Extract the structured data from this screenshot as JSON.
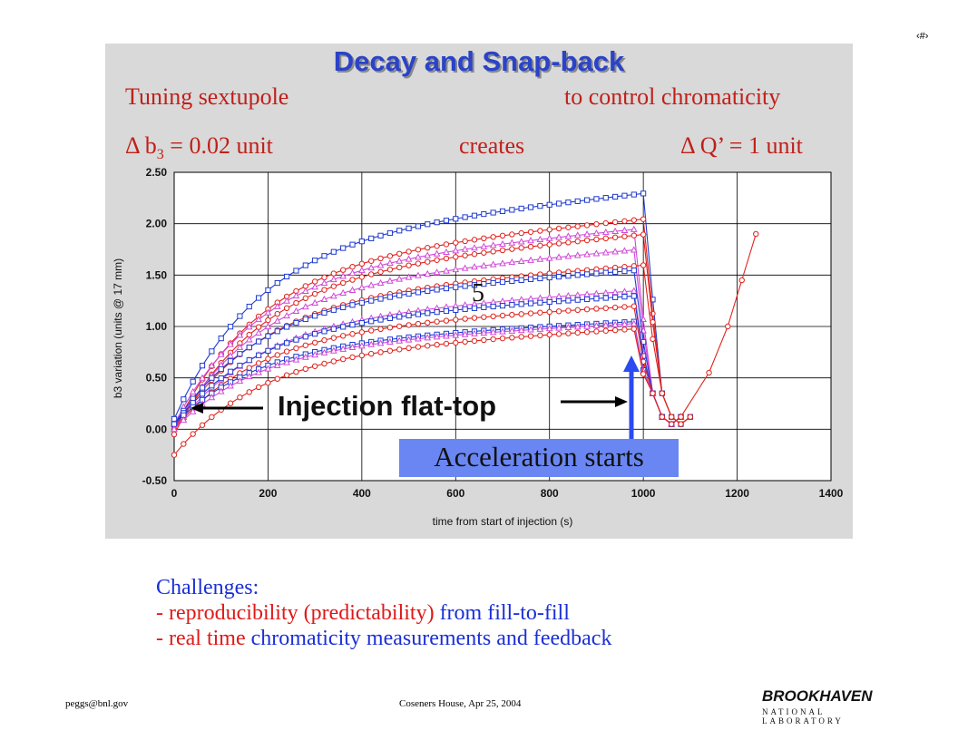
{
  "slide": {
    "number_glyph": "‹#›",
    "title": "Decay and Snap-back",
    "tuning_left": "Tuning sextupole",
    "tuning_right": "to control chromaticity",
    "delta_b_symbol": "Δ b",
    "delta_b_sub": "3",
    "delta_b_value": "= 0.02 unit",
    "creates": "creates",
    "delta_q": "Δ Q’ = 1 unit"
  },
  "annotations": {
    "injection": "Injection flat-top",
    "acceleration": "Acceleration starts",
    "marker_five": "5"
  },
  "challenges": {
    "heading": "Challenges:",
    "line1_red": "- reproducibility (predictability)",
    "line1_blue": " from fill-to-fill",
    "line2_red": "- real time",
    "line2_blue": " chromaticity measurements and feedback"
  },
  "footer": {
    "email": "peggs@bnl.gov",
    "venue": "Coseners House, Apr 25, 2004",
    "logo_top": "BROOKHAVEN",
    "logo_bottom": "NATIONAL LABORATORY"
  },
  "colors": {
    "title": "#2a43c8",
    "red_text": "#e01818",
    "blue_text": "#1a2fd6",
    "series_blue": "#1f3bd0",
    "series_red": "#e0221c",
    "series_magenta": "#d04ad8",
    "accel_box": "#6a86f2"
  },
  "chart_data": {
    "type": "line",
    "xlabel": "time from start of injection (s)",
    "ylabel": "b3 variation  (units @ 17 mm)",
    "xlim": [
      0,
      1400
    ],
    "ylim": [
      -0.5,
      2.5
    ],
    "x_ticks": [
      "0",
      "200",
      "400",
      "600",
      "800",
      "1000",
      "1200",
      "1400"
    ],
    "y_ticks": [
      "2.50",
      "2.00",
      "1.50",
      "1.00",
      "0.50",
      "0.00",
      "-0.50"
    ],
    "grid": true,
    "series": [
      {
        "marker": "square",
        "color": "#1f3bd0",
        "amp": 2.3,
        "end_x": 1000,
        "start": 0.1,
        "tail": "none"
      },
      {
        "marker": "circle",
        "color": "#e0221c",
        "amp": 2.05,
        "end_x": 1000,
        "start": 0.0,
        "tail": "none"
      },
      {
        "marker": "triangle",
        "color": "#d04ad8",
        "amp": 1.95,
        "end_x": 980,
        "start": 0.05,
        "tail": "none"
      },
      {
        "marker": "circle",
        "color": "#e0221c",
        "amp": 1.9,
        "end_x": 1000,
        "start": -0.05,
        "tail": "none"
      },
      {
        "marker": "triangle",
        "color": "#d04ad8",
        "amp": 1.75,
        "end_x": 980,
        "start": 0.0,
        "tail": "none"
      },
      {
        "marker": "circle",
        "color": "#e0221c",
        "amp": 1.6,
        "end_x": 1000,
        "start": 0.0,
        "tail": "none"
      },
      {
        "marker": "square",
        "color": "#1f3bd0",
        "amp": 1.55,
        "end_x": 980,
        "start": 0.05,
        "tail": "none"
      },
      {
        "marker": "triangle",
        "color": "#d04ad8",
        "amp": 1.35,
        "end_x": 980,
        "start": 0.0,
        "tail": "none"
      },
      {
        "marker": "square",
        "color": "#1f3bd0",
        "amp": 1.3,
        "end_x": 980,
        "start": 0.05,
        "tail": "none"
      },
      {
        "marker": "circle",
        "color": "#e0221c",
        "amp": 1.2,
        "end_x": 980,
        "start": 0.0,
        "tail": "none"
      },
      {
        "marker": "square",
        "color": "#1f3bd0",
        "amp": 1.05,
        "end_x": 980,
        "start": 0.05,
        "tail": "none"
      },
      {
        "marker": "triangle",
        "color": "#d04ad8",
        "amp": 1.03,
        "end_x": 980,
        "start": 0.0,
        "tail": "none"
      },
      {
        "marker": "circle",
        "color": "#e0221c",
        "amp": 0.98,
        "end_x": 980,
        "start": -0.25,
        "tail": "rise"
      }
    ]
  }
}
